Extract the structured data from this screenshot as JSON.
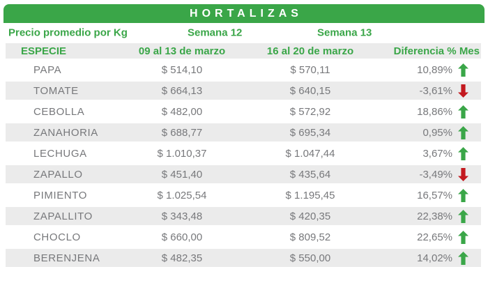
{
  "title": "HORTALIZAS",
  "header": {
    "price_label": "Precio promedio por Kg",
    "especie_label": "ESPECIE",
    "week1": {
      "name": "Semana 12",
      "dates": "09 al 13 de marzo"
    },
    "week2": {
      "name": "Semana 13",
      "dates": "16 al 20 de marzo"
    },
    "diff_label": "Diferencia % Mes"
  },
  "rows": [
    {
      "especie": "PAPA",
      "semana12": "$ 514,10",
      "semana13": "$ 570,11",
      "diferencia": "10,89%",
      "trend": "up"
    },
    {
      "especie": "TOMATE",
      "semana12": "$ 664,13",
      "semana13": "$ 640,15",
      "diferencia": "-3,61%",
      "trend": "down"
    },
    {
      "especie": "CEBOLLA",
      "semana12": "$ 482,00",
      "semana13": "$ 572,92",
      "diferencia": "18,86%",
      "trend": "up"
    },
    {
      "especie": "ZANAHORIA",
      "semana12": "$ 688,77",
      "semana13": "$ 695,34",
      "diferencia": "0,95%",
      "trend": "up"
    },
    {
      "especie": "LECHUGA",
      "semana12": "$ 1.010,37",
      "semana13": "$ 1.047,44",
      "diferencia": "3,67%",
      "trend": "up"
    },
    {
      "especie": "ZAPALLO",
      "semana12": "$ 451,40",
      "semana13": "$ 435,64",
      "diferencia": "-3,49%",
      "trend": "down"
    },
    {
      "especie": "PIMIENTO",
      "semana12": "$ 1.025,54",
      "semana13": "$ 1.195,45",
      "diferencia": "16,57%",
      "trend": "up"
    },
    {
      "especie": "ZAPALLITO",
      "semana12": "$ 343,48",
      "semana13": "$ 420,35",
      "diferencia": "22,38%",
      "trend": "up"
    },
    {
      "especie": "CHOCLO",
      "semana12": "$ 660,00",
      "semana13": "$ 809,52",
      "diferencia": "22,65%",
      "trend": "up"
    },
    {
      "especie": "BERENJENA",
      "semana12": "$ 482,35",
      "semana13": "$ 550,00",
      "diferencia": "14,02%",
      "trend": "up"
    }
  ],
  "icons": {
    "up": "trend-up-icon",
    "down": "trend-down-icon"
  },
  "colors": {
    "green": "#3aa648",
    "red": "#c3191f",
    "row_alt": "#ebebeb",
    "text_gray": "#77787b",
    "title_text": "#ffffff"
  },
  "chart_data": {
    "type": "table",
    "title": "HORTALIZAS",
    "subtitle": "Precio promedio por Kg",
    "columns": [
      "ESPECIE",
      "Semana 12 (09 al 13 de marzo)",
      "Semana 13 (16 al 20 de marzo)",
      "Diferencia % Mes"
    ],
    "rows": [
      [
        "PAPA",
        514.1,
        570.11,
        10.89
      ],
      [
        "TOMATE",
        664.13,
        640.15,
        -3.61
      ],
      [
        "CEBOLLA",
        482.0,
        572.92,
        18.86
      ],
      [
        "ZANAHORIA",
        688.77,
        695.34,
        0.95
      ],
      [
        "LECHUGA",
        1010.37,
        1047.44,
        3.67
      ],
      [
        "ZAPALLO",
        451.4,
        435.64,
        -3.49
      ],
      [
        "PIMIENTO",
        1025.54,
        1195.45,
        16.57
      ],
      [
        "ZAPALLITO",
        343.48,
        420.35,
        22.38
      ],
      [
        "CHOCLO",
        660.0,
        809.52,
        22.65
      ],
      [
        "BERENJENA",
        482.35,
        550.0,
        14.02
      ]
    ]
  }
}
